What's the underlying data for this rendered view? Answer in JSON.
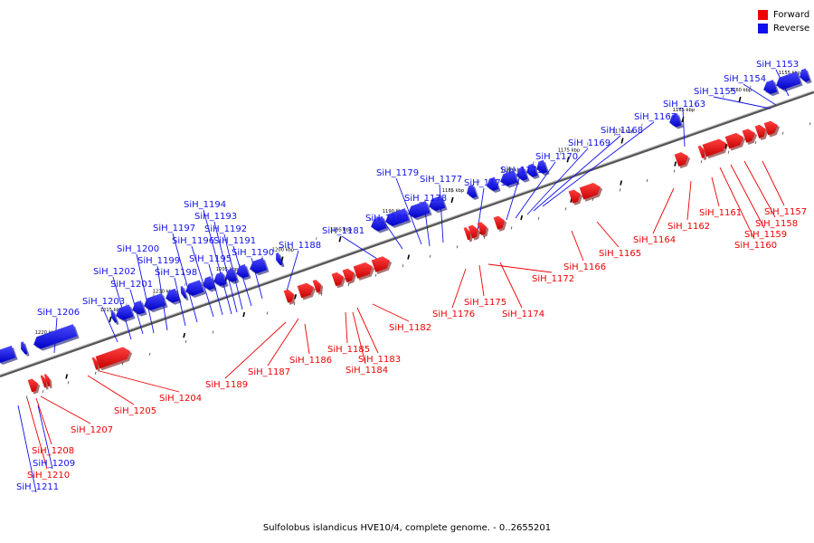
{
  "legend": {
    "forward_label": "Forward",
    "reverse_label": "Reverse",
    "forward_color": "#ee0000",
    "reverse_color": "#1010ee"
  },
  "caption": "Sulfolobus islandicus HVE10/4, complete genome. - 0..2655201",
  "scale_labels": [
    "1155 kbp",
    "1160 kbp",
    "1165 kbp",
    "1170 kbp",
    "1175 kbp",
    "1180 kbp",
    "1185 kbp",
    "1190 kbp",
    "1195 kbp",
    "1200 kbp",
    "1205 kbp",
    "1210 kbp",
    "1215 kbp",
    "1220 kbp"
  ],
  "reverse_genes": [
    "SiH_1153",
    "SiH_1154",
    "SiH_1155",
    "SiH_1163",
    "SiH_1167",
    "SiH_1168",
    "SiH_1169",
    "SiH_1170",
    "SiH_1171",
    "SiH_1173",
    "SiH_1177",
    "SiH_1178",
    "SiH_1179",
    "SiH_1180",
    "SiH_1181",
    "SiH_1188",
    "SiH_1190",
    "SiH_1191",
    "SiH_1192",
    "SiH_1193",
    "SiH_1194",
    "SiH_1195",
    "SiH_1196",
    "SiH_1197",
    "SiH_1198",
    "SiH_1199",
    "SiH_1200",
    "SiH_1201",
    "SiH_1202",
    "SiH_1203",
    "SiH_1206",
    "SiH_1209",
    "SiH_1211"
  ],
  "forward_genes": [
    "SiH_1157",
    "SiH_1158",
    "SiH_1159",
    "SiH_1160",
    "SiH_1161",
    "SiH_1162",
    "SiH_1164",
    "SiH_1165",
    "SiH_1166",
    "SiH_1172",
    "SiH_1174",
    "SiH_1175",
    "SiH_1176",
    "SiH_1182",
    "SiH_1183",
    "SiH_1184",
    "SiH_1185",
    "SiH_1186",
    "SiH_1187",
    "SiH_1189",
    "SiH_1204",
    "SiH_1205",
    "SiH_1207",
    "SiH_1208",
    "SiH_1210"
  ]
}
